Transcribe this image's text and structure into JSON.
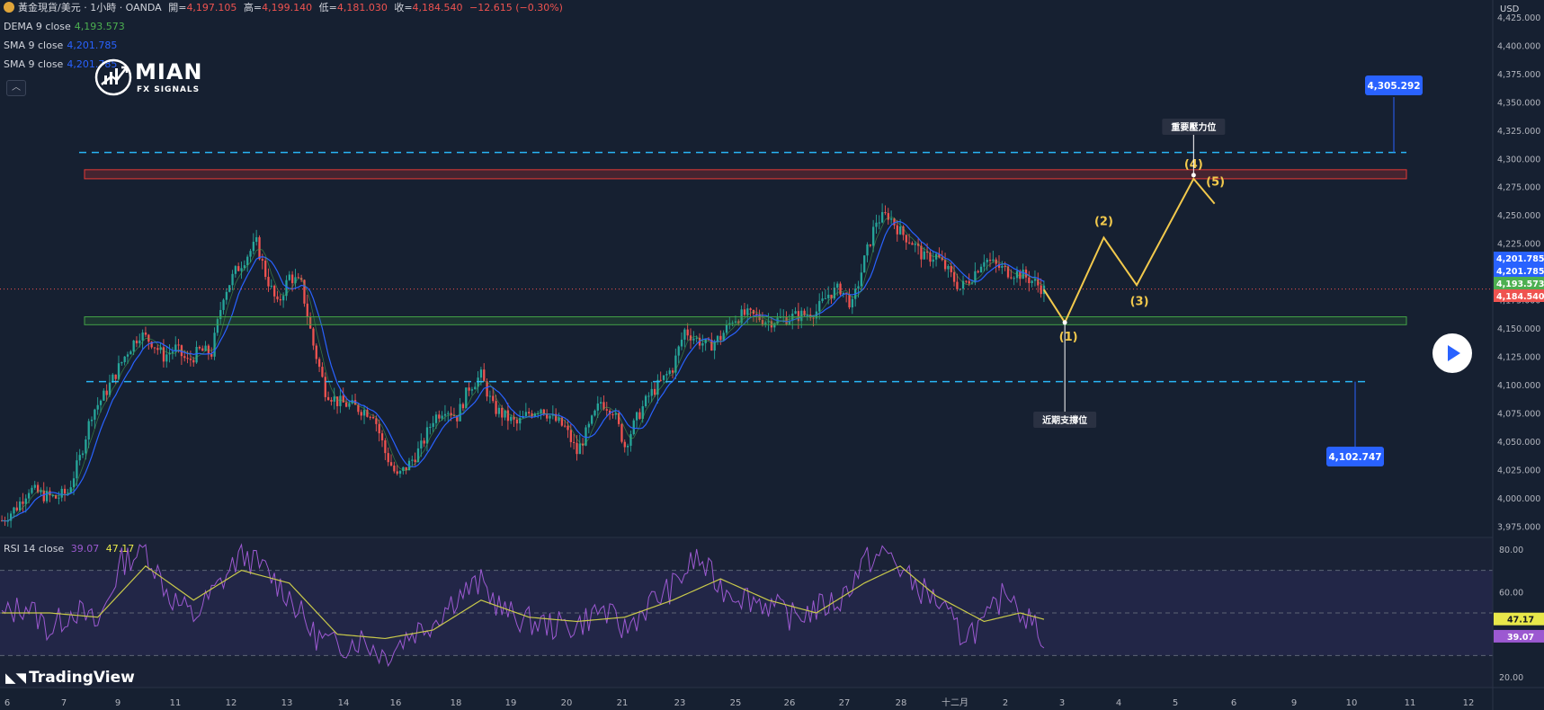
{
  "legend": {
    "symbol": "黃金現貨/美元 · 1小時 · OANDA",
    "open_label": "開=",
    "open": "4,197.105",
    "high_label": "高=",
    "high": "4,199.140",
    "low_label": "低=",
    "low": "4,181.030",
    "close_label": "收=",
    "close": "4,184.540",
    "change": "−12.615 (−0.30%)",
    "ind1_label": "DEMA 9 close",
    "ind1_value": "4,193.573",
    "ind2_label": "SMA 9 close",
    "ind2_value": "4,201.785",
    "ind3_label": "SMA 9 close",
    "ind3_value": "4,201.785",
    "collapse_icon": "chevron-up-icon"
  },
  "logo": {
    "line1": "MIAN",
    "line2": "FX SIGNALS"
  },
  "currency": "USD",
  "rsi_legend": {
    "label": "RSI 14 close",
    "rsi": "39.07",
    "ma": "47.17"
  },
  "watermark": "TradingView",
  "colors": {
    "background": "#162031",
    "up": "#26a69a",
    "down": "#ef5350",
    "accent": "#2962ff",
    "wave": "#f2c94c",
    "resistance_zone": "#d32f2f",
    "support_zone": "#2e7d32",
    "level_line": "#29b6f6",
    "rsi_line": "#9c59d1",
    "rsi_ma": "#c9c94a"
  },
  "chart_data": [
    {
      "type": "candlestick",
      "instrument": "黃金現貨/美元",
      "timeframe": "1小時",
      "ylim": [
        3965,
        4440
      ],
      "y_ticks": [
        "4,425.000",
        "4,400.000",
        "4,375.000",
        "4,350.000",
        "4,325.000",
        "4,300.000",
        "4,275.000",
        "4,250.000",
        "4,225.000",
        "4,200.000",
        "4,175.000",
        "4,150.000",
        "4,125.000",
        "4,100.000",
        "4,075.000",
        "4,050.000",
        "4,025.000",
        "4,000.000",
        "3,975.000"
      ],
      "x_ticks": [
        "6",
        "7",
        "9",
        "11",
        "12",
        "13",
        "14",
        "16",
        "18",
        "19",
        "20",
        "21",
        "23",
        "25",
        "26",
        "27",
        "28",
        "十二月",
        "2",
        "3",
        "4",
        "5",
        "6",
        "9",
        "10",
        "11",
        "12"
      ],
      "price_path": [
        [
          0,
          3980
        ],
        [
          5,
          3992
        ],
        [
          9,
          4008
        ],
        [
          14,
          4002
        ],
        [
          18,
          4000
        ],
        [
          22,
          4005
        ],
        [
          26,
          4035
        ],
        [
          30,
          4075
        ],
        [
          34,
          4090
        ],
        [
          38,
          4110
        ],
        [
          42,
          4130
        ],
        [
          46,
          4145
        ],
        [
          50,
          4138
        ],
        [
          54,
          4125
        ],
        [
          58,
          4132
        ],
        [
          62,
          4120
        ],
        [
          66,
          4130
        ],
        [
          70,
          4128
        ],
        [
          74,
          4180
        ],
        [
          78,
          4200
        ],
        [
          82,
          4215
        ],
        [
          85,
          4225
        ],
        [
          88,
          4198
        ],
        [
          92,
          4170
        ],
        [
          96,
          4196
        ],
        [
          100,
          4188
        ],
        [
          104,
          4135
        ],
        [
          108,
          4095
        ],
        [
          112,
          4085
        ],
        [
          116,
          4082
        ],
        [
          120,
          4078
        ],
        [
          124,
          4075
        ],
        [
          128,
          4040
        ],
        [
          132,
          4018
        ],
        [
          136,
          4030
        ],
        [
          140,
          4045
        ],
        [
          144,
          4070
        ],
        [
          148,
          4080
        ],
        [
          152,
          4072
        ],
        [
          156,
          4098
        ],
        [
          160,
          4108
        ],
        [
          164,
          4080
        ],
        [
          168,
          4072
        ],
        [
          172,
          4065
        ],
        [
          176,
          4075
        ],
        [
          180,
          4080
        ],
        [
          184,
          4070
        ],
        [
          188,
          4062
        ],
        [
          192,
          4040
        ],
        [
          196,
          4062
        ],
        [
          200,
          4085
        ],
        [
          204,
          4078
        ],
        [
          208,
          4046
        ],
        [
          212,
          4070
        ],
        [
          216,
          4090
        ],
        [
          220,
          4102
        ],
        [
          224,
          4115
        ],
        [
          228,
          4148
        ],
        [
          232,
          4140
        ],
        [
          236,
          4134
        ],
        [
          240,
          4142
        ],
        [
          244,
          4158
        ],
        [
          248,
          4162
        ],
        [
          252,
          4160
        ],
        [
          256,
          4156
        ],
        [
          260,
          4158
        ],
        [
          264,
          4160
        ],
        [
          268,
          4162
        ],
        [
          272,
          4165
        ],
        [
          276,
          4180
        ],
        [
          280,
          4185
        ],
        [
          284,
          4170
        ],
        [
          288,
          4210
        ],
        [
          292,
          4245
        ],
        [
          296,
          4250
        ],
        [
          300,
          4235
        ],
        [
          304,
          4226
        ],
        [
          308,
          4212
        ],
        [
          312,
          4214
        ],
        [
          316,
          4200
        ],
        [
          320,
          4185
        ],
        [
          324,
          4196
        ],
        [
          328,
          4212
        ],
        [
          332,
          4205
        ],
        [
          336,
          4200
        ],
        [
          340,
          4198
        ],
        [
          344,
          4192
        ],
        [
          348,
          4184
        ]
      ],
      "last_bar_index": 348,
      "total_bars_visible": 490,
      "price_scale_labels": [
        {
          "value": "4,201.785",
          "color": "#2962ff"
        },
        {
          "value": "4,201.785",
          "color": "#2962ff"
        },
        {
          "value": "4,193.573",
          "color": "#4caf50"
        },
        {
          "value": "4,184.540",
          "color": "#ef5350"
        }
      ],
      "levels": {
        "upper_dashed": 4305.292,
        "lower_dashed": 4102.747,
        "resistance_zone": [
          4282,
          4290
        ],
        "support_zone": [
          4153,
          4160
        ]
      },
      "price_labels": [
        "4,305.292",
        "4,102.747"
      ],
      "callouts": [
        "重要壓力位",
        "近期支撐位"
      ],
      "wave_labels": [
        "(1)",
        "(2)",
        "(3)",
        "(4)",
        "(5)"
      ],
      "projection": [
        {
          "bar": 348,
          "price": 4184
        },
        {
          "bar": 355,
          "price": 4155
        },
        {
          "bar": 368,
          "price": 4230
        },
        {
          "bar": 379,
          "price": 4188
        },
        {
          "bar": 398,
          "price": 4282
        },
        {
          "bar": 405,
          "price": 4260
        }
      ]
    },
    {
      "type": "line",
      "name": "RSI 14 close",
      "ylim": [
        15,
        85
      ],
      "y_ticks": [
        "80.00",
        "60.00",
        "40.00",
        "20.00"
      ],
      "bands": [
        70,
        50,
        30
      ],
      "rsi_last": 39.07,
      "ma_last": 47.17,
      "rsi_path": [
        [
          0,
          48
        ],
        [
          8,
          54
        ],
        [
          16,
          42
        ],
        [
          24,
          52
        ],
        [
          32,
          44
        ],
        [
          40,
          74
        ],
        [
          48,
          80
        ],
        [
          56,
          58
        ],
        [
          64,
          48
        ],
        [
          72,
          62
        ],
        [
          80,
          78
        ],
        [
          88,
          70
        ],
        [
          96,
          58
        ],
        [
          104,
          40
        ],
        [
          112,
          34
        ],
        [
          120,
          38
        ],
        [
          128,
          30
        ],
        [
          136,
          40
        ],
        [
          144,
          46
        ],
        [
          152,
          58
        ],
        [
          160,
          64
        ],
        [
          168,
          50
        ],
        [
          176,
          46
        ],
        [
          184,
          44
        ],
        [
          192,
          44
        ],
        [
          200,
          52
        ],
        [
          208,
          42
        ],
        [
          216,
          54
        ],
        [
          224,
          62
        ],
        [
          232,
          76
        ],
        [
          240,
          62
        ],
        [
          248,
          58
        ],
        [
          256,
          54
        ],
        [
          264,
          48
        ],
        [
          272,
          52
        ],
        [
          280,
          56
        ],
        [
          288,
          74
        ],
        [
          296,
          78
        ],
        [
          304,
          64
        ],
        [
          312,
          56
        ],
        [
          320,
          40
        ],
        [
          328,
          44
        ],
        [
          336,
          62
        ],
        [
          342,
          48
        ],
        [
          348,
          39
        ]
      ],
      "ma_path": [
        [
          0,
          50
        ],
        [
          16,
          50
        ],
        [
          32,
          48
        ],
        [
          48,
          72
        ],
        [
          64,
          56
        ],
        [
          80,
          70
        ],
        [
          96,
          64
        ],
        [
          112,
          40
        ],
        [
          128,
          38
        ],
        [
          144,
          42
        ],
        [
          160,
          56
        ],
        [
          176,
          48
        ],
        [
          192,
          46
        ],
        [
          208,
          48
        ],
        [
          224,
          56
        ],
        [
          240,
          66
        ],
        [
          256,
          56
        ],
        [
          272,
          50
        ],
        [
          288,
          64
        ],
        [
          300,
          72
        ],
        [
          312,
          58
        ],
        [
          328,
          46
        ],
        [
          340,
          50
        ],
        [
          348,
          47
        ]
      ]
    }
  ]
}
